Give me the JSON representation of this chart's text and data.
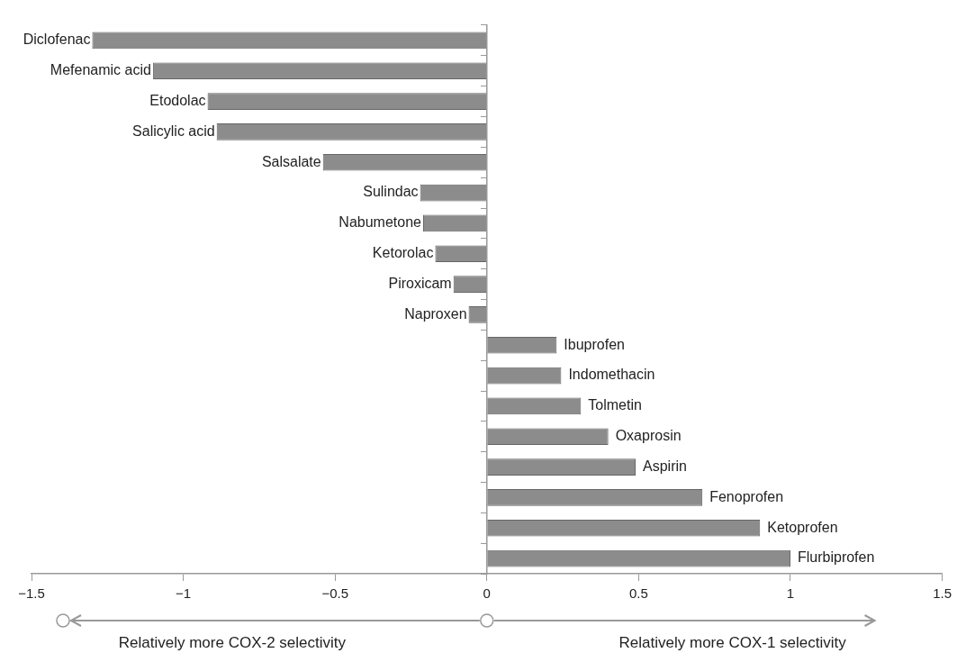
{
  "chart_data": {
    "type": "bar",
    "orientation": "horizontal",
    "categories": [
      "Diclofenac",
      "Mefenamic acid",
      "Etodolac",
      "Salicylic acid",
      "Salsalate",
      "Sulindac",
      "Nabumetone",
      "Ketorolac",
      "Piroxicam",
      "Naproxen",
      "Ibuprofen",
      "Indomethacin",
      "Tolmetin",
      "Oxaprosin",
      "Aspirin",
      "Fenoprofen",
      "Ketoprofen",
      "Flurbiprofen"
    ],
    "values": [
      -1.3,
      -1.1,
      -0.92,
      -0.89,
      -0.54,
      -0.22,
      -0.21,
      -0.17,
      -0.11,
      -0.06,
      0.23,
      0.245,
      0.31,
      0.4,
      0.49,
      0.71,
      0.9,
      1.0
    ],
    "color": "#8c8c8c",
    "xlim": [
      -1.5,
      1.5
    ],
    "xticks": [
      {
        "value": -1.5,
        "label": "−1.5"
      },
      {
        "value": -1,
        "label": "−1"
      },
      {
        "value": -0.5,
        "label": "−0.5"
      },
      0,
      0.5,
      1,
      1.5
    ],
    "annotations": [
      "Relatively more COX-2 selectivity",
      "Relatively more COX-1 selectivity"
    ]
  }
}
